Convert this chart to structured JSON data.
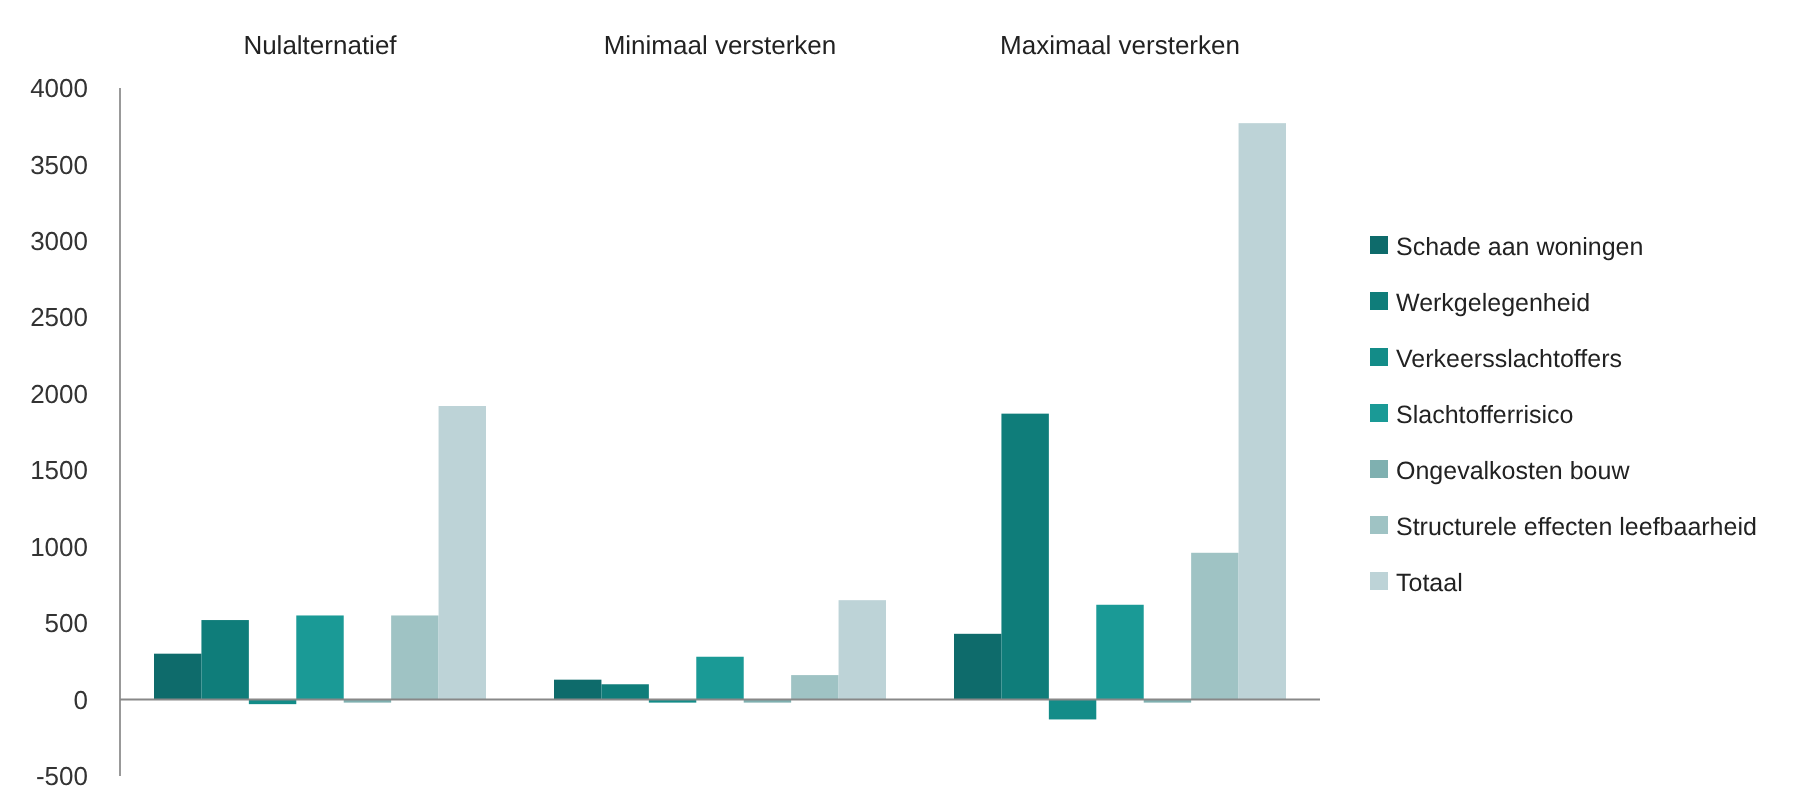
{
  "chart_data": {
    "type": "bar",
    "categories": [
      "Nulalternatief",
      "Minimaal versterken",
      "Maximaal versterken"
    ],
    "series": [
      {
        "name": "Schade aan woningen",
        "color": "#0e6b6b",
        "values": [
          300,
          130,
          430
        ]
      },
      {
        "name": "Werkgelegenheid",
        "color": "#0f7d7a",
        "values": [
          520,
          100,
          1870
        ]
      },
      {
        "name": "Verkeersslachtoffers",
        "color": "#138c88",
        "values": [
          -30,
          -20,
          -130
        ]
      },
      {
        "name": "Slachtofferrisico",
        "color": "#1a9a96",
        "values": [
          550,
          280,
          620
        ]
      },
      {
        "name": "Ongevalkosten bouw",
        "color": "#7fb0b0",
        "values": [
          -20,
          -20,
          -20
        ]
      },
      {
        "name": "Structurele effecten leefbaarheid",
        "color": "#9fc3c4",
        "values": [
          550,
          160,
          960
        ]
      },
      {
        "name": "Totaal",
        "color": "#bdd3d7",
        "values": [
          1920,
          650,
          3770
        ]
      }
    ],
    "ylim": [
      -500,
      4000
    ],
    "yticks": [
      -500,
      0,
      500,
      1000,
      1500,
      2000,
      2500,
      3000,
      3500,
      4000
    ],
    "legend": "right"
  }
}
